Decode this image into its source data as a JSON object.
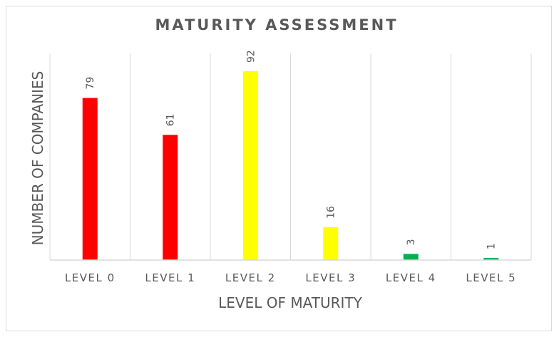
{
  "chart_data": {
    "type": "bar",
    "title": "MATURITY ASSESSMENT",
    "xlabel": "LEVEL OF MATURITY",
    "ylabel": "NUMBER OF COMPANIES",
    "categories": [
      "LEVEL 0",
      "LEVEL 1",
      "LEVEL 2",
      "LEVEL 3",
      "LEVEL 4",
      "LEVEL 5"
    ],
    "values": [
      79,
      61,
      92,
      16,
      3,
      1
    ],
    "data_labels": [
      "79",
      "61",
      "92",
      "16",
      "3",
      "1"
    ],
    "colors": [
      "#ff0000",
      "#ff0000",
      "#ffff00",
      "#ffff00",
      "#00b050",
      "#00b050"
    ],
    "ylim": [
      0,
      92
    ],
    "grid": "vertical category separators",
    "legend": "none"
  }
}
